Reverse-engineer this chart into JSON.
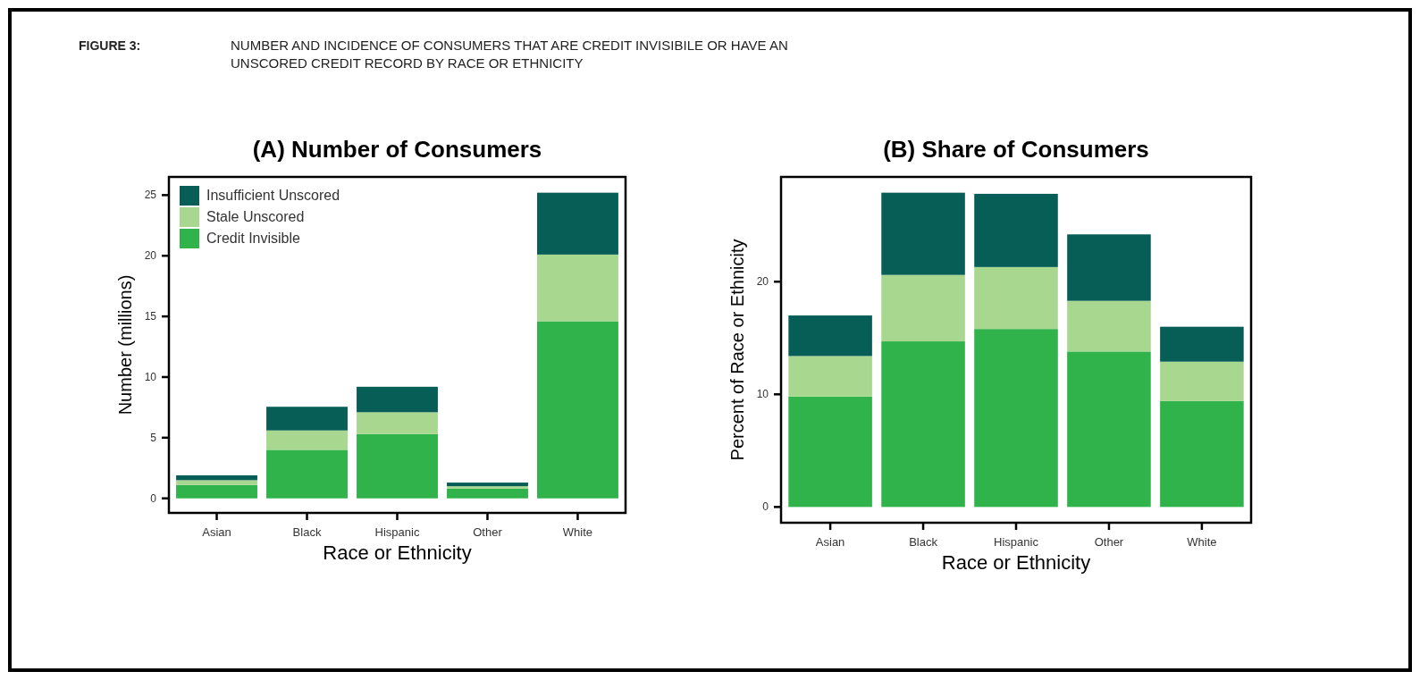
{
  "chart_data": [
    {
      "type": "bar",
      "title": "(A) Number of Consumers",
      "xlabel": "Race or Ethnicity",
      "ylabel": "Number (millions)",
      "annotations": [
        "FIGURE 3:",
        "NUMBER AND INCIDENCE OF CONSUMERS THAT ARE CREDIT INVISIBILE OR HAVE AN UNSCORED CREDIT RECORD BY RACE OR ETHNICITY"
      ],
      "categories": [
        "Asian",
        "Black",
        "Hispanic",
        "Other",
        "White"
      ],
      "stacked": true,
      "ylim": [
        -1.2,
        26.5
      ],
      "yticks": [
        0,
        5,
        10,
        15,
        20,
        25
      ],
      "legend": "top left",
      "series": [
        {
          "name": "Credit Invisible",
          "color": "#2fb34a",
          "values": [
            1.1,
            4.0,
            5.3,
            0.8,
            14.6
          ]
        },
        {
          "name": "Stale Unscored",
          "color": "#a8d88f",
          "values": [
            0.4,
            1.6,
            1.8,
            0.2,
            5.5
          ]
        },
        {
          "name": "Insufficient Unscored",
          "color": "#075e57",
          "values": [
            0.4,
            1.95,
            2.1,
            0.3,
            5.1
          ]
        }
      ]
    },
    {
      "type": "bar",
      "title": "(B) Share of Consumers",
      "xlabel": "Race or Ethnicity",
      "ylabel": "Percent of Race or Ethnicity",
      "categories": [
        "Asian",
        "Black",
        "Hispanic",
        "Other",
        "White"
      ],
      "stacked": true,
      "ylim": [
        -1.4,
        29.3
      ],
      "yticks": [
        0,
        10,
        20
      ],
      "series": [
        {
          "color": "#2fb34a",
          "values": [
            9.8,
            14.7,
            15.8,
            13.8,
            9.4
          ]
        },
        {
          "color": "#a8d88f",
          "values": [
            3.6,
            5.9,
            5.5,
            4.5,
            3.5
          ]
        },
        {
          "color": "#075e57",
          "values": [
            3.6,
            7.3,
            6.5,
            5.9,
            3.1
          ]
        }
      ]
    }
  ]
}
